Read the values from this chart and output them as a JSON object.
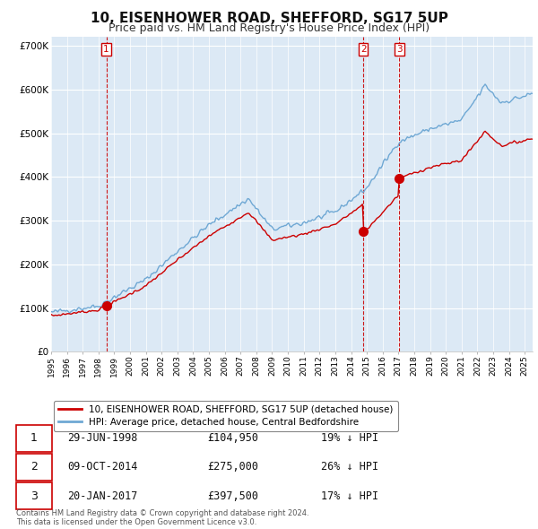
{
  "title": "10, EISENHOWER ROAD, SHEFFORD, SG17 5UP",
  "subtitle": "Price paid vs. HM Land Registry's House Price Index (HPI)",
  "title_fontsize": 11,
  "subtitle_fontsize": 9,
  "ylim": [
    0,
    720000
  ],
  "yticks": [
    0,
    100000,
    200000,
    300000,
    400000,
    500000,
    600000,
    700000
  ],
  "ytick_labels": [
    "£0",
    "£100K",
    "£200K",
    "£300K",
    "£400K",
    "£500K",
    "£600K",
    "£700K"
  ],
  "background_color": "#ffffff",
  "plot_bg_color": "#dce9f5",
  "grid_color": "#ffffff",
  "hpi_color": "#6fa8d4",
  "price_color": "#cc0000",
  "vline_color": "#cc0000",
  "sale_points": [
    {
      "year": 1998.5,
      "price": 104950,
      "label": "1"
    },
    {
      "year": 2014.77,
      "price": 275000,
      "label": "2"
    },
    {
      "year": 2017.05,
      "price": 397500,
      "label": "3"
    }
  ],
  "legend_entries": [
    "10, EISENHOWER ROAD, SHEFFORD, SG17 5UP (detached house)",
    "HPI: Average price, detached house, Central Bedfordshire"
  ],
  "table_rows": [
    {
      "num": "1",
      "date": "29-JUN-1998",
      "price": "£104,950",
      "hpi": "19% ↓ HPI"
    },
    {
      "num": "2",
      "date": "09-OCT-2014",
      "price": "£275,000",
      "hpi": "26% ↓ HPI"
    },
    {
      "num": "3",
      "date": "20-JAN-2017",
      "price": "£397,500",
      "hpi": "17% ↓ HPI"
    }
  ],
  "footer": "Contains HM Land Registry data © Crown copyright and database right 2024.\nThis data is licensed under the Open Government Licence v3.0.",
  "xmin": 1995.0,
  "xmax": 2025.5
}
